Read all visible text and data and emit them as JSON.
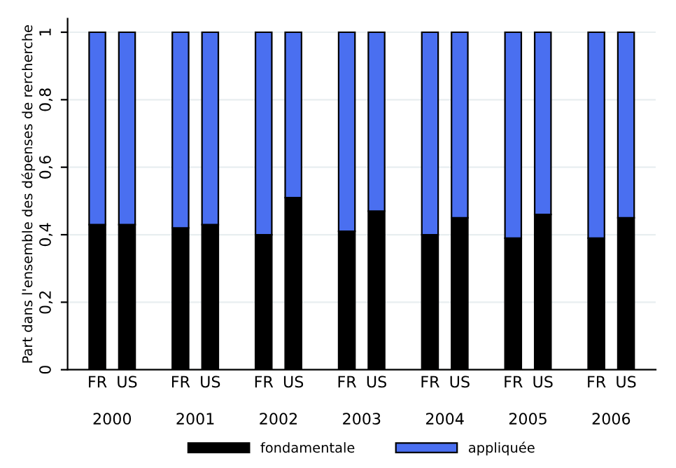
{
  "chart_data": {
    "type": "bar",
    "stacked": true,
    "ylabel": "Part dans l'ensemble des dépenses de rercherche",
    "categories": [
      "FR",
      "US",
      "FR",
      "US",
      "FR",
      "US",
      "FR",
      "US",
      "FR",
      "US",
      "FR",
      "US",
      "FR",
      "US"
    ],
    "annotations": [
      "2000",
      "2001",
      "2002",
      "2003",
      "2004",
      "2005",
      "2006"
    ],
    "series": [
      {
        "name": "fondamentale",
        "color": "#000000",
        "values": [
          0.43,
          0.43,
          0.42,
          0.43,
          0.4,
          0.51,
          0.41,
          0.47,
          0.4,
          0.45,
          0.39,
          0.46,
          0.39,
          0.45
        ]
      },
      {
        "name": "appliquée",
        "color": "#4a6ff0",
        "values": [
          0.57,
          0.57,
          0.58,
          0.57,
          0.6,
          0.49,
          0.59,
          0.53,
          0.6,
          0.55,
          0.61,
          0.54,
          0.61,
          0.55
        ]
      }
    ],
    "ylim": [
      0,
      1.04
    ],
    "yticks": [
      0,
      {
        "value": 0.2,
        "label": "0,2"
      },
      {
        "value": 0.4,
        "label": "0,4"
      },
      {
        "value": 0.6,
        "label": "0,6"
      },
      {
        "value": 0.8,
        "label": "0,8"
      },
      1
    ],
    "grid": "y",
    "legend": "bottom"
  }
}
